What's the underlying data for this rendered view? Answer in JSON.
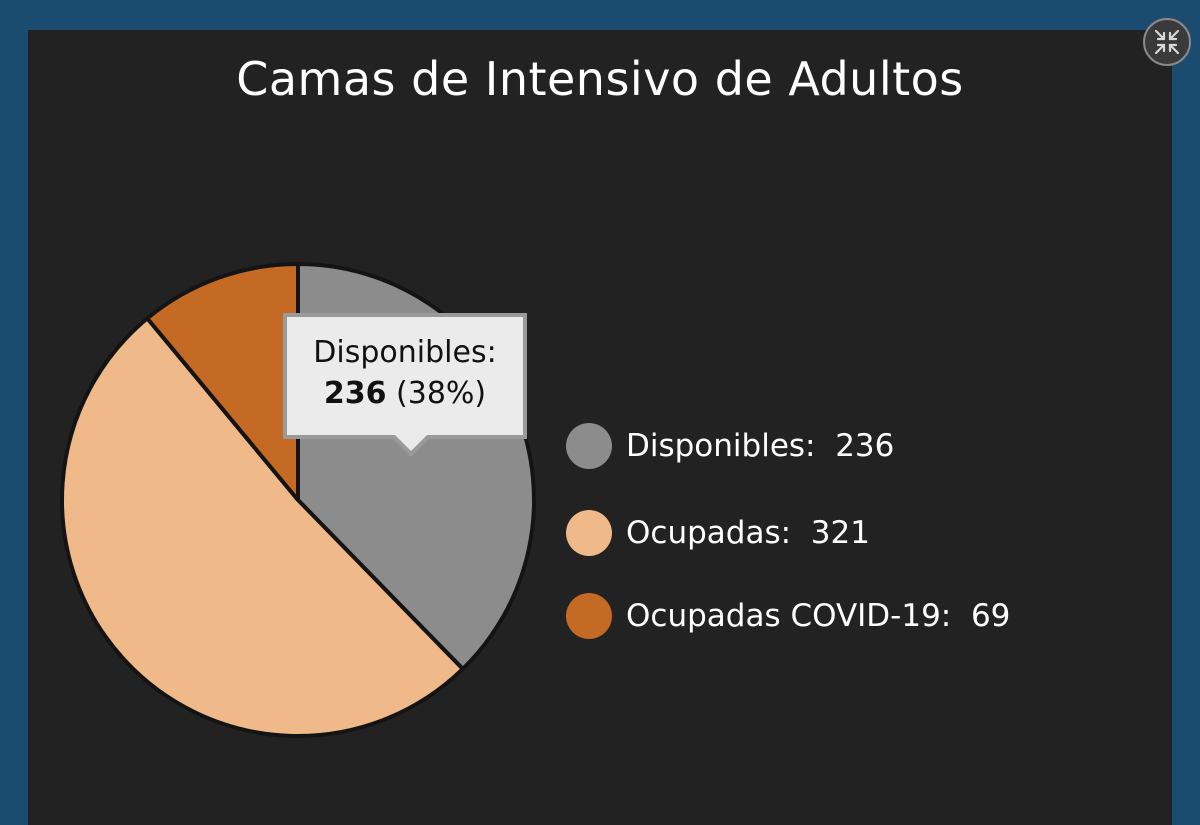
{
  "chart_data": {
    "type": "pie",
    "title": "Camas de Intensivo de Adultos",
    "slices": [
      {
        "label": "Disponibles",
        "value": 236,
        "color": "#8c8c8c"
      },
      {
        "label": "Ocupadas",
        "value": 321,
        "color": "#efb98a"
      },
      {
        "label": "Ocupadas COVID-19",
        "value": 69,
        "color": "#c46a25"
      }
    ],
    "legend": [
      "Disponibles:  236",
      "Ocupadas:  321",
      "Ocupadas COVID-19:  69"
    ],
    "legend_placement": "right",
    "tooltip": {
      "label": "Disponibles:",
      "value": "236",
      "percent": "(38%)"
    }
  },
  "controls": {
    "collapse_icon": "collapse-arrows-icon"
  },
  "colors": {
    "page_border": "#1b4b6e",
    "panel_bg": "#222222"
  }
}
